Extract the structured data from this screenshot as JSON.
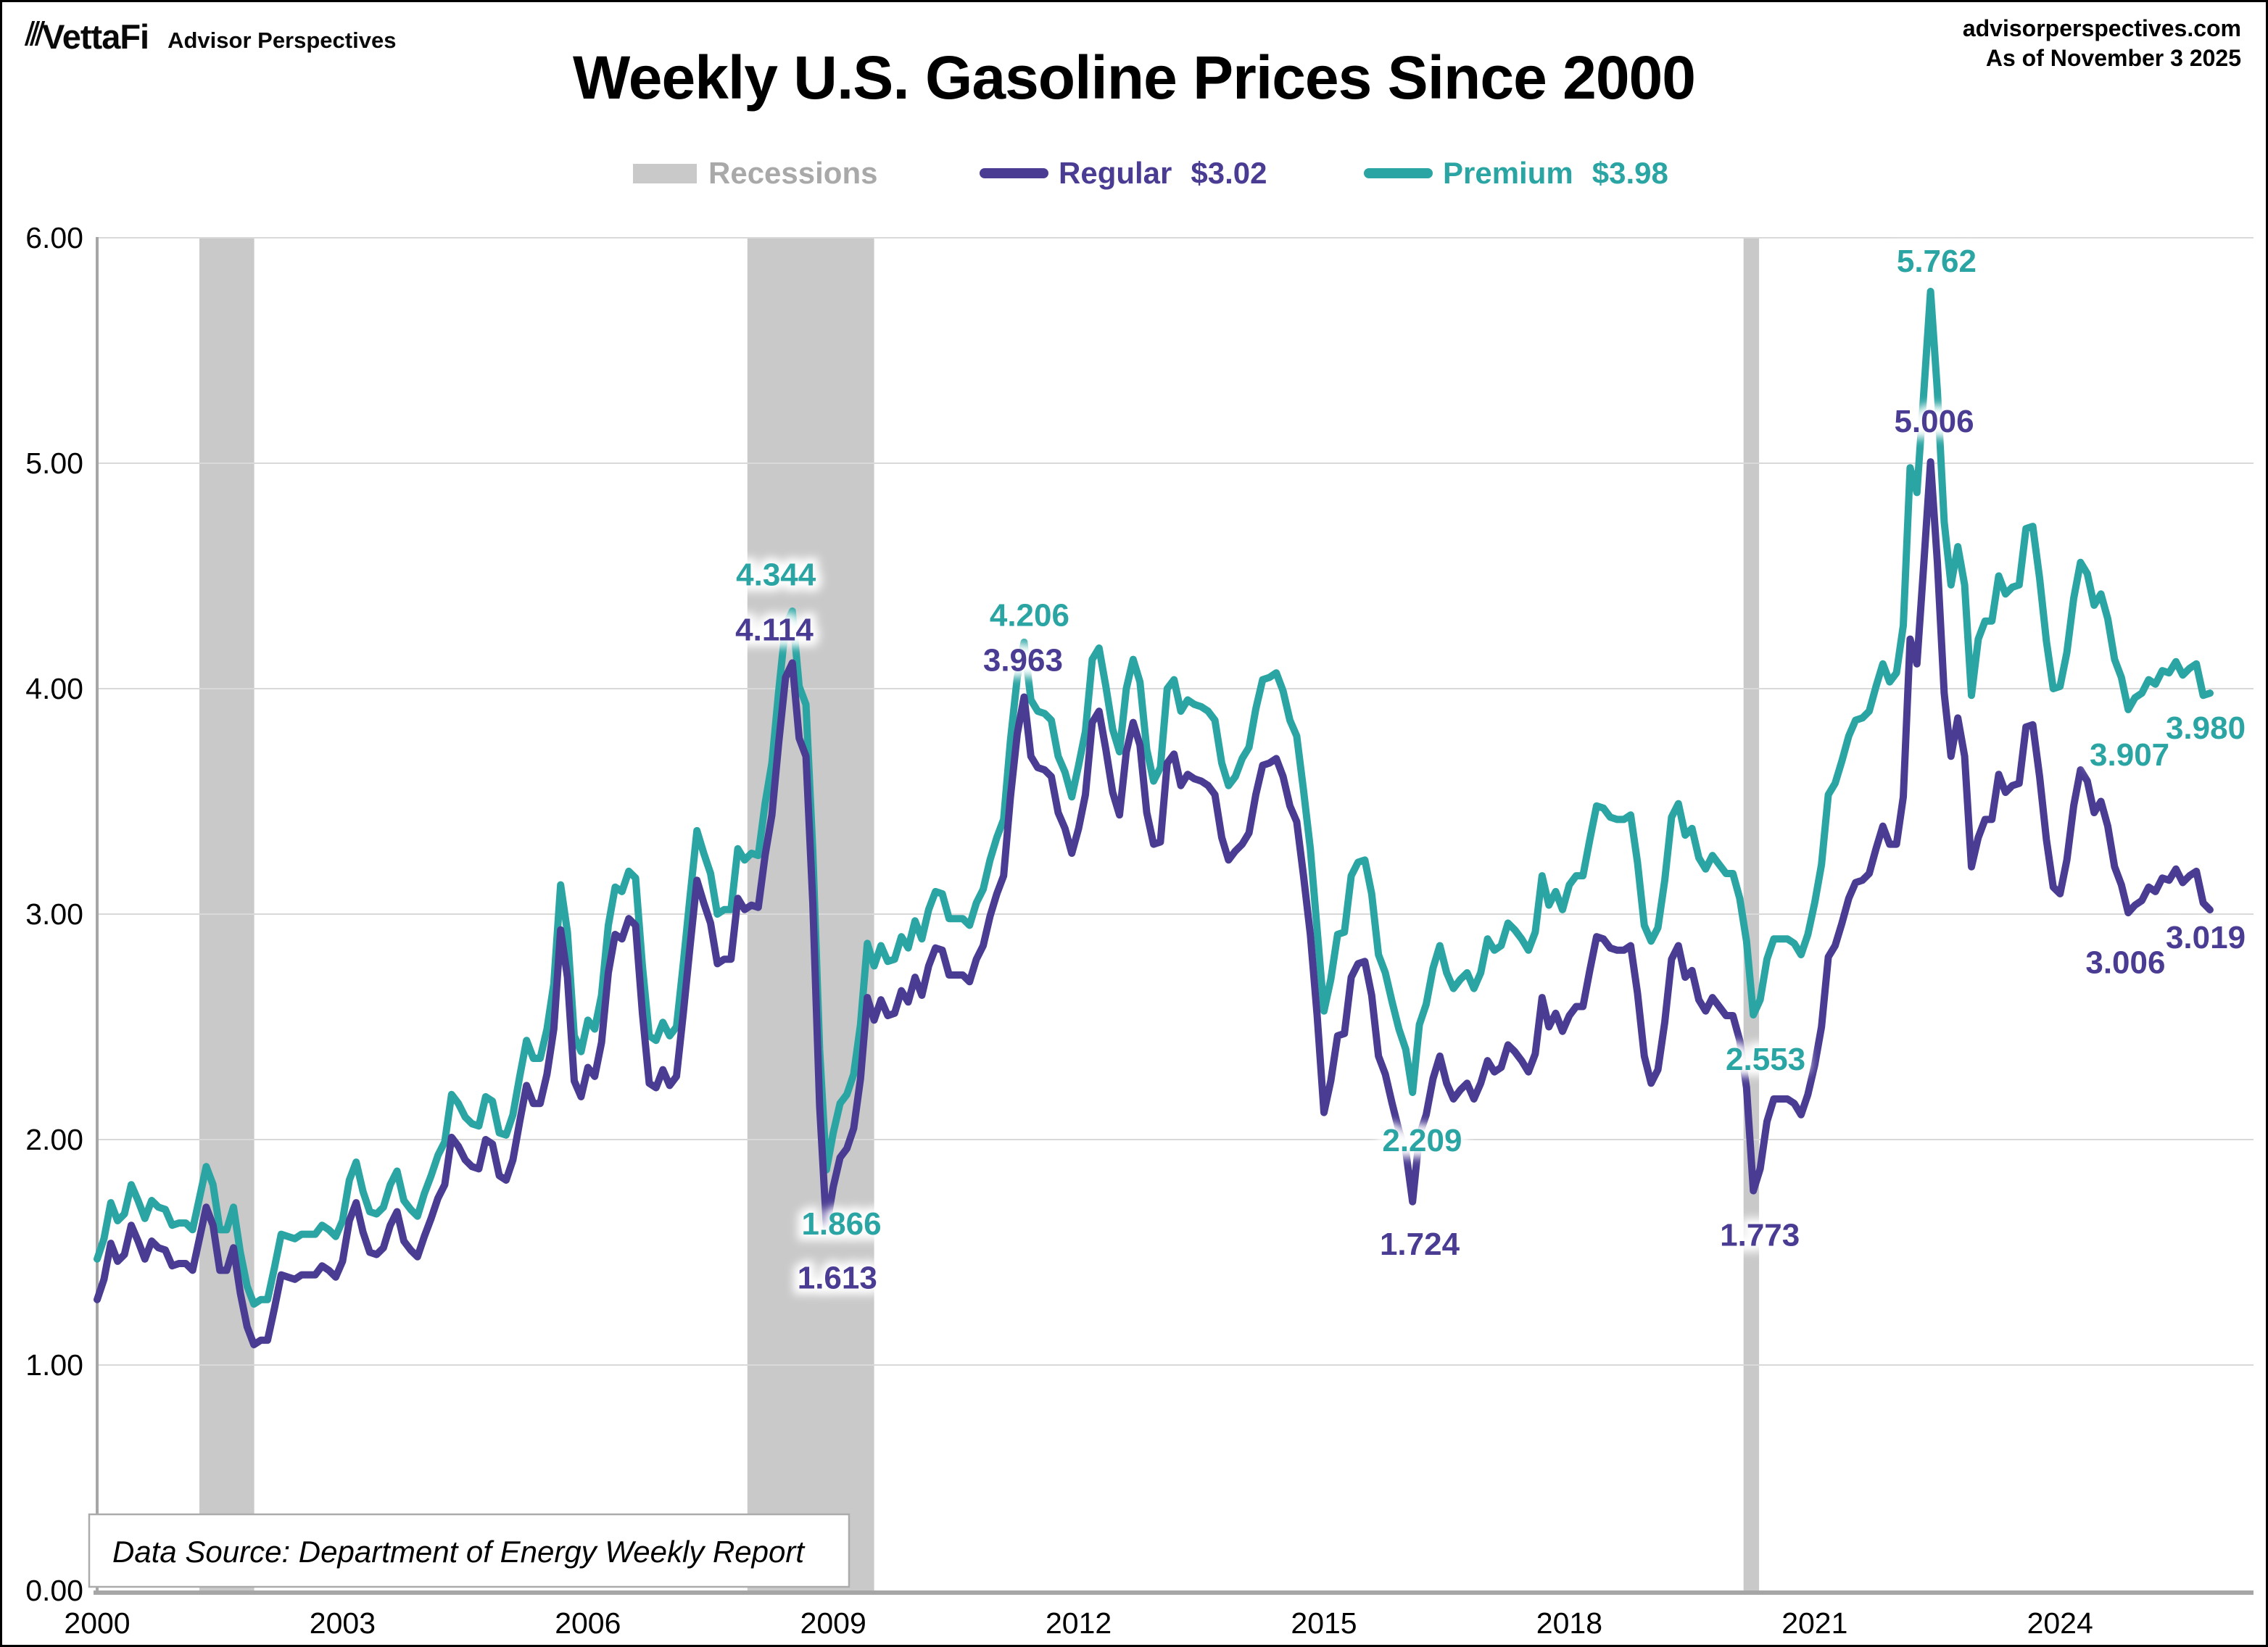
{
  "header": {
    "logo_text": "VettaFi",
    "logo_subtext": "Advisor Perspectives",
    "title": "Weekly U.S. Gasoline Prices Since 2000",
    "source_site": "advisorperspectives.com",
    "as_of": "As of November 3 2025"
  },
  "legend": {
    "recessions_label": "Recessions",
    "regular_label": "Regular",
    "regular_value": "$3.02",
    "premium_label": "Premium",
    "premium_value": "$3.98"
  },
  "footnote": "Data Source: Department of Energy Weekly Report",
  "colors": {
    "regular": "#4A3C93",
    "premium": "#2AA5A3",
    "recession": "#C9C9C9",
    "grid": "#D9D9D9",
    "axis": "#A6A6A6",
    "legend_gray": "#A9A9A9"
  },
  "chart_data": {
    "type": "line",
    "title": "Weekly U.S. Gasoline Prices Since 2000",
    "x_start_year": 2000,
    "points_per_year": 12,
    "xlim": [
      2000,
      2026.35
    ],
    "ylim": [
      0,
      6
    ],
    "grid": "horizontal",
    "y_ticks": [
      "0.00",
      "1.00",
      "2.00",
      "3.00",
      "4.00",
      "5.00",
      "6.00"
    ],
    "x_ticks": [
      2000,
      2003,
      2006,
      2009,
      2012,
      2015,
      2018,
      2021,
      2024
    ],
    "recessions": [
      [
        2001.25,
        2001.92
      ],
      [
        2007.95,
        2009.5
      ],
      [
        2020.13,
        2020.32
      ]
    ],
    "series": [
      {
        "name": "Premium",
        "color": "#2AA5A3",
        "latest_label": "$3.98",
        "values": [
          1.47,
          1.56,
          1.72,
          1.64,
          1.67,
          1.8,
          1.73,
          1.65,
          1.73,
          1.7,
          1.69,
          1.62,
          1.63,
          1.63,
          1.6,
          1.74,
          1.88,
          1.8,
          1.6,
          1.6,
          1.7,
          1.5,
          1.35,
          1.27,
          1.29,
          1.29,
          1.43,
          1.58,
          1.57,
          1.56,
          1.58,
          1.58,
          1.58,
          1.62,
          1.6,
          1.57,
          1.64,
          1.82,
          1.9,
          1.77,
          1.68,
          1.67,
          1.7,
          1.8,
          1.86,
          1.73,
          1.69,
          1.66,
          1.76,
          1.84,
          1.93,
          1.99,
          2.2,
          2.16,
          2.1,
          2.07,
          2.06,
          2.19,
          2.17,
          2.03,
          2.02,
          2.11,
          2.28,
          2.44,
          2.36,
          2.36,
          2.49,
          2.69,
          3.13,
          2.92,
          2.46,
          2.39,
          2.53,
          2.49,
          2.64,
          2.95,
          3.12,
          3.1,
          3.19,
          3.16,
          2.77,
          2.46,
          2.44,
          2.52,
          2.46,
          2.5,
          2.78,
          3.08,
          3.37,
          3.27,
          3.18,
          3.0,
          3.02,
          3.02,
          3.29,
          3.24,
          3.27,
          3.26,
          3.49,
          3.67,
          3.99,
          4.28,
          4.344,
          4.01,
          3.93,
          3.28,
          2.4,
          1.866,
          2.03,
          2.16,
          2.2,
          2.29,
          2.51,
          2.87,
          2.77,
          2.86,
          2.79,
          2.8,
          2.9,
          2.85,
          2.97,
          2.89,
          3.02,
          3.1,
          3.09,
          2.98,
          2.98,
          2.98,
          2.95,
          3.05,
          3.11,
          3.24,
          3.34,
          3.42,
          3.77,
          4.05,
          4.206,
          3.95,
          3.9,
          3.89,
          3.86,
          3.7,
          3.63,
          3.52,
          3.66,
          3.81,
          4.13,
          4.18,
          4.01,
          3.82,
          3.72,
          4.0,
          4.13,
          4.03,
          3.73,
          3.59,
          3.65,
          4.0,
          4.04,
          3.9,
          3.95,
          3.93,
          3.92,
          3.9,
          3.86,
          3.67,
          3.57,
          3.61,
          3.69,
          3.74,
          3.91,
          4.04,
          4.05,
          4.07,
          3.99,
          3.86,
          3.79,
          3.55,
          3.29,
          2.93,
          2.57,
          2.71,
          2.91,
          2.92,
          3.17,
          3.23,
          3.24,
          3.09,
          2.82,
          2.74,
          2.61,
          2.49,
          2.4,
          2.209,
          2.51,
          2.6,
          2.76,
          2.86,
          2.74,
          2.67,
          2.71,
          2.74,
          2.67,
          2.74,
          2.89,
          2.84,
          2.86,
          2.96,
          2.93,
          2.89,
          2.84,
          2.92,
          3.17,
          3.04,
          3.1,
          3.02,
          3.13,
          3.17,
          3.17,
          3.33,
          3.48,
          3.47,
          3.43,
          3.42,
          3.42,
          3.44,
          3.23,
          2.95,
          2.88,
          2.94,
          3.15,
          3.43,
          3.49,
          3.35,
          3.38,
          3.25,
          3.2,
          3.26,
          3.22,
          3.18,
          3.18,
          3.07,
          2.88,
          2.553,
          2.62,
          2.8,
          2.89,
          2.89,
          2.89,
          2.87,
          2.82,
          2.91,
          3.05,
          3.22,
          3.53,
          3.58,
          3.68,
          3.79,
          3.86,
          3.87,
          3.9,
          4.01,
          4.11,
          4.03,
          4.07,
          4.28,
          4.98,
          4.87,
          5.31,
          5.762,
          5.32,
          4.74,
          4.46,
          4.63,
          4.46,
          3.97,
          4.22,
          4.3,
          4.3,
          4.5,
          4.42,
          4.45,
          4.46,
          4.71,
          4.72,
          4.49,
          4.21,
          4.0,
          4.01,
          4.16,
          4.4,
          4.56,
          4.51,
          4.37,
          4.42,
          4.31,
          4.13,
          4.05,
          3.907,
          3.96,
          3.98,
          4.04,
          4.02,
          4.08,
          4.07,
          4.12,
          4.06,
          4.09,
          4.11,
          3.97,
          3.98
        ]
      },
      {
        "name": "Regular",
        "color": "#4A3C93",
        "latest_label": "$3.02",
        "values": [
          1.29,
          1.38,
          1.54,
          1.46,
          1.49,
          1.62,
          1.55,
          1.47,
          1.55,
          1.52,
          1.51,
          1.44,
          1.45,
          1.45,
          1.42,
          1.56,
          1.7,
          1.62,
          1.42,
          1.42,
          1.52,
          1.32,
          1.17,
          1.09,
          1.11,
          1.11,
          1.25,
          1.4,
          1.39,
          1.38,
          1.4,
          1.4,
          1.4,
          1.44,
          1.42,
          1.39,
          1.46,
          1.64,
          1.72,
          1.59,
          1.5,
          1.49,
          1.52,
          1.62,
          1.68,
          1.55,
          1.51,
          1.48,
          1.57,
          1.65,
          1.74,
          1.8,
          2.01,
          1.97,
          1.91,
          1.88,
          1.87,
          2.0,
          1.98,
          1.84,
          1.82,
          1.91,
          2.08,
          2.24,
          2.16,
          2.16,
          2.29,
          2.49,
          2.93,
          2.72,
          2.26,
          2.19,
          2.32,
          2.28,
          2.43,
          2.74,
          2.91,
          2.89,
          2.98,
          2.95,
          2.56,
          2.25,
          2.23,
          2.31,
          2.24,
          2.28,
          2.56,
          2.86,
          3.15,
          3.05,
          2.96,
          2.78,
          2.8,
          2.8,
          3.07,
          3.02,
          3.04,
          3.03,
          3.26,
          3.44,
          3.76,
          4.05,
          4.114,
          3.78,
          3.7,
          3.05,
          2.15,
          1.613,
          1.79,
          1.92,
          1.96,
          2.05,
          2.27,
          2.63,
          2.53,
          2.62,
          2.55,
          2.56,
          2.66,
          2.61,
          2.72,
          2.64,
          2.77,
          2.85,
          2.84,
          2.73,
          2.73,
          2.73,
          2.7,
          2.8,
          2.86,
          2.99,
          3.09,
          3.17,
          3.52,
          3.8,
          3.963,
          3.7,
          3.65,
          3.64,
          3.61,
          3.45,
          3.38,
          3.27,
          3.38,
          3.53,
          3.85,
          3.9,
          3.73,
          3.54,
          3.44,
          3.72,
          3.85,
          3.75,
          3.45,
          3.31,
          3.32,
          3.67,
          3.71,
          3.57,
          3.62,
          3.6,
          3.59,
          3.57,
          3.53,
          3.34,
          3.24,
          3.28,
          3.31,
          3.36,
          3.53,
          3.66,
          3.67,
          3.69,
          3.61,
          3.48,
          3.41,
          3.17,
          2.91,
          2.55,
          2.12,
          2.26,
          2.46,
          2.47,
          2.72,
          2.78,
          2.79,
          2.64,
          2.37,
          2.29,
          2.16,
          2.04,
          1.95,
          1.724,
          2.02,
          2.11,
          2.27,
          2.37,
          2.25,
          2.18,
          2.22,
          2.25,
          2.18,
          2.25,
          2.35,
          2.3,
          2.32,
          2.42,
          2.39,
          2.35,
          2.3,
          2.38,
          2.63,
          2.5,
          2.56,
          2.48,
          2.55,
          2.59,
          2.59,
          2.75,
          2.9,
          2.89,
          2.85,
          2.84,
          2.84,
          2.86,
          2.65,
          2.37,
          2.25,
          2.31,
          2.52,
          2.8,
          2.86,
          2.72,
          2.75,
          2.62,
          2.57,
          2.63,
          2.59,
          2.55,
          2.55,
          2.44,
          2.23,
          1.773,
          1.87,
          2.08,
          2.18,
          2.18,
          2.18,
          2.16,
          2.11,
          2.2,
          2.33,
          2.5,
          2.81,
          2.86,
          2.96,
          3.07,
          3.14,
          3.15,
          3.18,
          3.29,
          3.39,
          3.31,
          3.31,
          3.52,
          4.22,
          4.11,
          4.55,
          5.006,
          4.56,
          3.98,
          3.7,
          3.87,
          3.7,
          3.21,
          3.34,
          3.42,
          3.42,
          3.62,
          3.54,
          3.57,
          3.58,
          3.83,
          3.84,
          3.61,
          3.33,
          3.12,
          3.09,
          3.24,
          3.48,
          3.64,
          3.59,
          3.45,
          3.5,
          3.39,
          3.21,
          3.13,
          3.006,
          3.04,
          3.06,
          3.12,
          3.1,
          3.16,
          3.15,
          3.2,
          3.14,
          3.17,
          3.19,
          3.05,
          3.019
        ]
      }
    ],
    "annotations": [
      {
        "text": "4.344",
        "series": "premium",
        "year": 2008.3,
        "price": 4.51
      },
      {
        "text": "4.114",
        "series": "regular",
        "year": 2008.28,
        "price": 4.265
      },
      {
        "text": "1.866",
        "series": "premium",
        "year": 2009.1,
        "price": 1.63
      },
      {
        "text": "1.613",
        "series": "regular",
        "year": 2009.05,
        "price": 1.39
      },
      {
        "text": "4.206",
        "series": "premium",
        "year": 2011.4,
        "price": 4.33
      },
      {
        "text": "3.963",
        "series": "regular",
        "year": 2011.32,
        "price": 4.13
      },
      {
        "text": "2.209",
        "series": "premium",
        "year": 2016.2,
        "price": 2.0
      },
      {
        "text": "1.724",
        "series": "regular",
        "year": 2016.17,
        "price": 1.54
      },
      {
        "text": "2.553",
        "series": "premium",
        "year": 2020.4,
        "price": 2.36
      },
      {
        "text": "1.773",
        "series": "regular",
        "year": 2020.33,
        "price": 1.58
      },
      {
        "text": "5.762",
        "series": "premium",
        "year": 2022.49,
        "price": 5.9
      },
      {
        "text": "5.006",
        "series": "regular",
        "year": 2022.46,
        "price": 5.19
      },
      {
        "text": "3.907",
        "series": "premium",
        "year": 2024.85,
        "price": 3.71
      },
      {
        "text": "3.980",
        "series": "premium",
        "year": 2025.78,
        "price": 3.83
      },
      {
        "text": "3.006",
        "series": "regular",
        "year": 2024.8,
        "price": 2.79
      },
      {
        "text": "3.019",
        "series": "regular",
        "year": 2025.78,
        "price": 2.9
      }
    ]
  }
}
